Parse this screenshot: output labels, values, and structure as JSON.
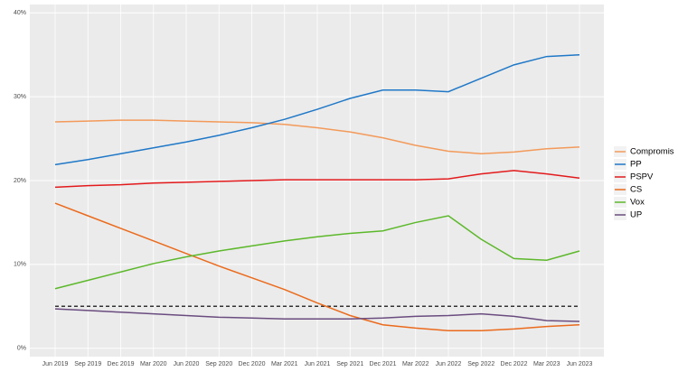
{
  "chart_data": {
    "type": "line",
    "categories": [
      "Jun 2019",
      "Sep 2019",
      "Dec 2019",
      "Mar 2020",
      "Jun 2020",
      "Sep 2020",
      "Dec 2020",
      "Mar 2021",
      "Jun 2021",
      "Sep 2021",
      "Dec 2021",
      "Mar 2022",
      "Jun 2022",
      "Sep 2022",
      "Dec 2022",
      "Mar 2023",
      "Jun 2023"
    ],
    "series": [
      {
        "name": "Compromis",
        "color": "#f39a5a",
        "values": [
          27,
          27.1,
          27.2,
          27.2,
          27.1,
          27,
          26.9,
          26.7,
          26.3,
          25.8,
          25.1,
          24.2,
          23.5,
          23.2,
          23.4,
          23.8,
          24
        ]
      },
      {
        "name": "PP",
        "color": "#1f78c8",
        "values": [
          21.9,
          22.5,
          23.2,
          23.9,
          24.6,
          25.4,
          26.3,
          27.3,
          28.5,
          29.8,
          30.8,
          30.8,
          30.6,
          32.2,
          33.8,
          34.8,
          35
        ]
      },
      {
        "name": "PSPV",
        "color": "#e31a1c",
        "values": [
          19.2,
          19.4,
          19.5,
          19.7,
          19.8,
          19.9,
          20,
          20.1,
          20.1,
          20.1,
          20.1,
          20.1,
          20.2,
          20.8,
          21.2,
          20.8,
          20.3
        ]
      },
      {
        "name": "CS",
        "color": "#eb6a1c",
        "values": [
          17.3,
          15.8,
          14.3,
          12.8,
          11.3,
          9.8,
          8.4,
          7,
          5.4,
          3.9,
          2.8,
          2.4,
          2.1,
          2.1,
          2.3,
          2.6,
          2.8
        ]
      },
      {
        "name": "Vox",
        "color": "#5cb82a",
        "values": [
          7.1,
          8.1,
          9.1,
          10.1,
          10.9,
          11.6,
          12.2,
          12.8,
          13.3,
          13.7,
          14,
          15,
          15.8,
          13,
          10.7,
          10.5,
          11.6
        ]
      },
      {
        "name": "UP",
        "color": "#6a4c7f",
        "values": [
          4.7,
          4.5,
          4.3,
          4.1,
          3.9,
          3.7,
          3.6,
          3.5,
          3.5,
          3.5,
          3.6,
          3.8,
          3.9,
          4.1,
          3.8,
          3.3,
          3.2
        ]
      }
    ],
    "threshold": 5,
    "ylim": [
      -1,
      41
    ],
    "yticks": [
      {
        "value": 0,
        "label": "0%"
      },
      {
        "value": 10,
        "label": "10%"
      },
      {
        "value": 20,
        "label": "20%"
      },
      {
        "value": 30,
        "label": "30%"
      },
      {
        "value": 40,
        "label": "40%"
      }
    ],
    "grid": true,
    "legend": "right"
  }
}
